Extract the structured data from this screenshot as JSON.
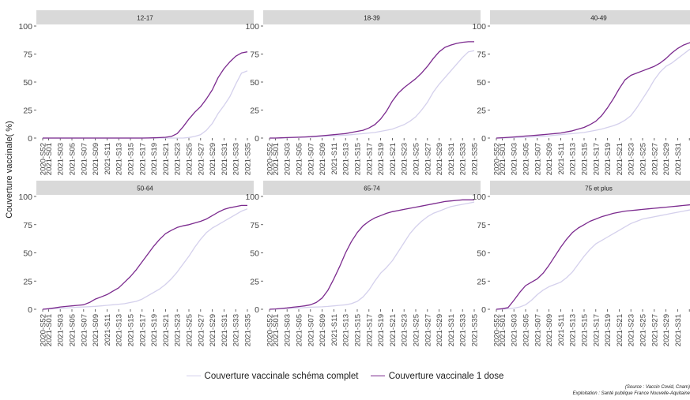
{
  "chart_data": {
    "type": "line",
    "ylabel": "Couverture vaccinale( %)",
    "ylim": [
      0,
      100
    ],
    "yticks": [
      0,
      25,
      50,
      75,
      100
    ],
    "categories": [
      "2020-S52",
      "2021-S01",
      "2021-S02",
      "2021-S03",
      "2021-S04",
      "2021-S05",
      "2021-S06",
      "2021-S07",
      "2021-S08",
      "2021-S09",
      "2021-S10",
      "2021-S11",
      "2021-S12",
      "2021-S13",
      "2021-S14",
      "2021-S15",
      "2021-S16",
      "2021-S17",
      "2021-S18",
      "2021-S19",
      "2021-S20",
      "2021-S21",
      "2021-S22",
      "2021-S23",
      "2021-S24",
      "2021-S25",
      "2021-S26",
      "2021-S27",
      "2021-S28",
      "2021-S29",
      "2021-S30",
      "2021-S31",
      "2021-S32",
      "2021-S33",
      "2021-S34",
      "2021-S35"
    ],
    "tick_labels": [
      "2020-S52",
      "2021-S01",
      "2021-S03",
      "2021-S05",
      "2021-S07",
      "2021-S09",
      "2021-S11",
      "2021-S13",
      "2021-S15",
      "2021-S17",
      "2021-S19",
      "2021-S21",
      "2021-S23",
      "2021-S25",
      "2021-S27",
      "2021-S29",
      "2021-S31",
      "2021-S33",
      "2021-S35"
    ],
    "series_meta": [
      {
        "name": "Couverture vaccinale schéma complet",
        "color": "#d4d0ec"
      },
      {
        "name": "Couverture vaccinale 1 dose",
        "color": "#7b2a8e"
      }
    ],
    "panels": [
      {
        "title": "12-17",
        "complet": [
          0,
          0,
          0,
          0,
          0,
          0,
          0,
          0,
          0,
          0,
          0,
          0,
          0,
          0,
          0,
          0,
          0,
          0,
          0,
          0,
          0,
          0,
          0,
          0,
          0,
          0.5,
          1.5,
          3,
          7,
          13,
          22,
          29,
          37,
          48,
          58,
          60
        ],
        "dose1": [
          0,
          0,
          0,
          0,
          0,
          0,
          0,
          0,
          0,
          0,
          0,
          0,
          0,
          0,
          0,
          0,
          0,
          0,
          0.1,
          0.2,
          0.4,
          0.7,
          1.5,
          4,
          10,
          17,
          23,
          28,
          35,
          43,
          54,
          62,
          68,
          73,
          76,
          77
        ]
      },
      {
        "title": "18-39",
        "complet": [
          0,
          0,
          0,
          0.2,
          0.4,
          0.6,
          0.8,
          1,
          1.2,
          1.5,
          1.8,
          2,
          2.3,
          2.6,
          3,
          3.5,
          4,
          4.5,
          5,
          6,
          7,
          8,
          10,
          12,
          15,
          19,
          25,
          32,
          41,
          48,
          54,
          60,
          66,
          72,
          77,
          78
        ]
      },
      {
        "title": "40-49",
        "complet": [
          0,
          0,
          0.2,
          0.4,
          0.6,
          0.8,
          1,
          1.3,
          1.6,
          2,
          2.5,
          3,
          3.5,
          4,
          4.5,
          5,
          6,
          7,
          8,
          9.5,
          11,
          13,
          16,
          20,
          27,
          35,
          43,
          52,
          59,
          64,
          67,
          71,
          75,
          79,
          82,
          83
        ]
      },
      {
        "title": "50-64",
        "complet": [
          0,
          0.3,
          0.6,
          0.9,
          1.2,
          1.5,
          1.8,
          2,
          2.3,
          2.6,
          3,
          3.5,
          4,
          4.5,
          5,
          6,
          7,
          9,
          12,
          15,
          18,
          22,
          27,
          33,
          40,
          47,
          55,
          62,
          68,
          72,
          75,
          78,
          81,
          84,
          87,
          89
        ]
      },
      {
        "title": "65-74",
        "complet": [
          0,
          0.2,
          0.5,
          0.8,
          1,
          1.2,
          1.5,
          1.8,
          2,
          2.2,
          2.5,
          3,
          3.5,
          4,
          5,
          7,
          11,
          17,
          25,
          32,
          37,
          43,
          51,
          59,
          67,
          73,
          78,
          82,
          85,
          87,
          89,
          91,
          92,
          93,
          94,
          95
        ]
      },
      {
        "title": "75 et plus",
        "complet": [
          0,
          0.2,
          0.5,
          1,
          2,
          4,
          8,
          13,
          17,
          20,
          22,
          24,
          28,
          33,
          40,
          47,
          53,
          58,
          61,
          64,
          67,
          70,
          73,
          76,
          78,
          80,
          81,
          82,
          83,
          84,
          85,
          86,
          87,
          88,
          89,
          90
        ]
      }
    ],
    "panels_dose1": [
      [
        0,
        0,
        0,
        0,
        0,
        0,
        0,
        0,
        0,
        0,
        0,
        0,
        0,
        0,
        0,
        0,
        0,
        0,
        0.1,
        0.2,
        0.4,
        0.7,
        1.5,
        4,
        10,
        17,
        23,
        28,
        35,
        43,
        54,
        62,
        68,
        73,
        76,
        77
      ],
      [
        0,
        0,
        0.2,
        0.4,
        0.6,
        0.8,
        1,
        1.3,
        1.7,
        2.1,
        2.5,
        3,
        3.5,
        4,
        5,
        6,
        7,
        9,
        12,
        17,
        24,
        33,
        40,
        45,
        49,
        53,
        58,
        64,
        71,
        77,
        81,
        83,
        84.5,
        85.5,
        86,
        86
      ],
      [
        0,
        0.3,
        0.6,
        1,
        1.4,
        1.8,
        2.2,
        2.6,
        3,
        3.5,
        4,
        4.5,
        5.5,
        6.5,
        8,
        9.5,
        12,
        15,
        20,
        27,
        35,
        44,
        52,
        56,
        58,
        60,
        62,
        64,
        67,
        71,
        76,
        80,
        83,
        85,
        86,
        87
      ],
      [
        0,
        0.5,
        1.2,
        2,
        2.5,
        3,
        3.5,
        4,
        6,
        9,
        11,
        13,
        16,
        19,
        24,
        29,
        35,
        42,
        49,
        56,
        62,
        67,
        70,
        72.5,
        74,
        75,
        76.5,
        78,
        80,
        83,
        86,
        88.5,
        90,
        91,
        92,
        92
      ],
      [
        0,
        0.3,
        0.7,
        1.2,
        1.8,
        2.4,
        3,
        4,
        6,
        10,
        17,
        27,
        38,
        50,
        60,
        68,
        74,
        78,
        81,
        83,
        85,
        86.5,
        87.5,
        88.5,
        89.5,
        90.5,
        91.5,
        92.5,
        93.5,
        94.5,
        95.5,
        96,
        96.5,
        97,
        97,
        97
      ],
      [
        0,
        0.5,
        1.5,
        8,
        15,
        21,
        24,
        27,
        32,
        39,
        47,
        55,
        62,
        68,
        72,
        75,
        78,
        80,
        82,
        83.5,
        85,
        86,
        87,
        87.5,
        88,
        88.5,
        89,
        89.5,
        90,
        90.5,
        91,
        91.5,
        92,
        92.5,
        93,
        93
      ]
    ],
    "legend_placement": "bottom",
    "grid": false
  },
  "source_line1": "(Source : Vaccin Covid, Cnam)",
  "source_line2": "Exploitation : Santé publique France Nouvelle-Aquitaine"
}
